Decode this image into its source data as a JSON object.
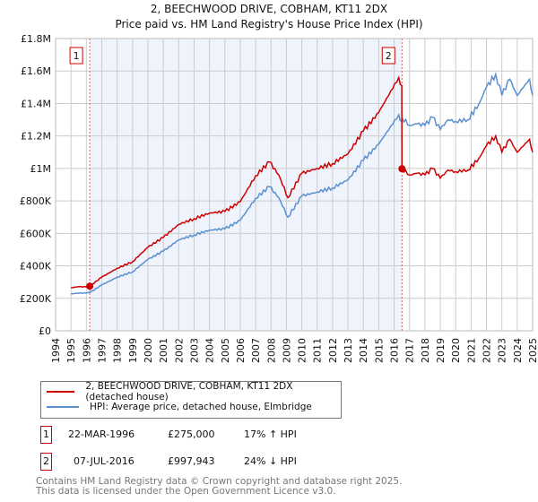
{
  "chart_data": {
    "type": "line",
    "title": "2, BEECHWOOD DRIVE, COBHAM, KT11 2DX",
    "subtitle": "Price paid vs. HM Land Registry's House Price Index (HPI)",
    "xlim": [
      1994,
      2025
    ],
    "ylim": [
      0,
      1800000
    ],
    "x_ticks": [
      "1994",
      "1995",
      "1996",
      "1997",
      "1998",
      "1999",
      "2000",
      "2001",
      "2002",
      "2003",
      "2004",
      "2005",
      "2006",
      "2007",
      "2008",
      "2009",
      "2010",
      "2011",
      "2012",
      "2013",
      "2014",
      "2015",
      "2016",
      "2017",
      "2018",
      "2019",
      "2020",
      "2021",
      "2022",
      "2023",
      "2024",
      "2025"
    ],
    "y_ticks": [
      {
        "v": 0,
        "label": "£0"
      },
      {
        "v": 200000,
        "label": "£200K"
      },
      {
        "v": 400000,
        "label": "£400K"
      },
      {
        "v": 600000,
        "label": "£600K"
      },
      {
        "v": 800000,
        "label": "£800K"
      },
      {
        "v": 1000000,
        "label": "£1M"
      },
      {
        "v": 1200000,
        "label": "£1.2M"
      },
      {
        "v": 1400000,
        "label": "£1.4M"
      },
      {
        "v": 1600000,
        "label": "£1.6M"
      },
      {
        "v": 1800000,
        "label": "£1.8M"
      }
    ],
    "grid": true,
    "series": [
      {
        "name": "2, BEECHWOOD DRIVE, COBHAM, KT11 2DX (detached house)",
        "color": "#cc0000",
        "x": [
          1995,
          1995.5,
          1996,
          1996.22,
          1997,
          1998,
          1999,
          2000,
          2001,
          2002,
          2003,
          2004,
          2005,
          2006,
          2007,
          2007.9,
          2008.5,
          2009.1,
          2010,
          2011,
          2012,
          2013,
          2014,
          2015,
          2016.3,
          2016.5,
          2016.51,
          2017,
          2017.5,
          2018,
          2018.5,
          2019,
          2019.5,
          2020,
          2020.8,
          2021.5,
          2022,
          2022.6,
          2023,
          2023.5,
          2024,
          2024.8,
          2025
        ],
        "y": [
          265000,
          272000,
          270000,
          275000,
          330000,
          385000,
          425000,
          515000,
          575000,
          655000,
          690000,
          725000,
          735000,
          795000,
          955000,
          1040000,
          960000,
          820000,
          970000,
          1000000,
          1030000,
          1090000,
          1230000,
          1345000,
          1560000,
          1510000,
          997943,
          960000,
          970000,
          960000,
          1000000,
          940000,
          990000,
          980000,
          990000,
          1060000,
          1140000,
          1200000,
          1100000,
          1180000,
          1100000,
          1180000,
          1100000
        ]
      },
      {
        "name": "HPI: Average price, detached house, Elmbridge",
        "color": "#5b8fd0",
        "x": [
          1995,
          1995.5,
          1996,
          1996.22,
          1997,
          1998,
          1999,
          2000,
          2001,
          2002,
          2003,
          2004,
          2005,
          2006,
          2007,
          2007.9,
          2008.5,
          2009.1,
          2010,
          2011,
          2012,
          2013,
          2014,
          2015,
          2016.3,
          2016.5,
          2016.51,
          2017,
          2017.5,
          2018,
          2018.5,
          2019,
          2019.5,
          2020,
          2020.8,
          2021.5,
          2022,
          2022.6,
          2023,
          2023.5,
          2024,
          2024.8,
          2025
        ],
        "y": [
          228000,
          232000,
          232000,
          235000,
          282000,
          330000,
          363000,
          440000,
          490000,
          560000,
          590000,
          620000,
          628000,
          680000,
          816000,
          888000,
          820000,
          700000,
          830000,
          855000,
          880000,
          930000,
          1050000,
          1150000,
          1330000,
          1290000,
          1313000,
          1265000,
          1275000,
          1265000,
          1315000,
          1240000,
          1300000,
          1290000,
          1300000,
          1395000,
          1500000,
          1580000,
          1450000,
          1550000,
          1450000,
          1550000,
          1450000
        ]
      }
    ],
    "sales": [
      {
        "id": "1",
        "x": 1996.22,
        "price": 275000
      },
      {
        "id": "2",
        "x": 2016.51,
        "price": 997943
      }
    ],
    "legend": [
      "2, BEECHWOOD DRIVE, COBHAM, KT11 2DX (detached house)",
      "HPI: Average price, detached house, Elmbridge"
    ]
  },
  "table": [
    {
      "id": "1",
      "date": "22-MAR-1996",
      "price": "£275,000",
      "hpi": "17% ↑ HPI"
    },
    {
      "id": "2",
      "date": "07-JUL-2016",
      "price": "£997,943",
      "hpi": "24% ↓ HPI"
    }
  ],
  "footer": [
    "Contains HM Land Registry data © Crown copyright and database right 2025.",
    "This data is licensed under the Open Government Licence v3.0."
  ]
}
